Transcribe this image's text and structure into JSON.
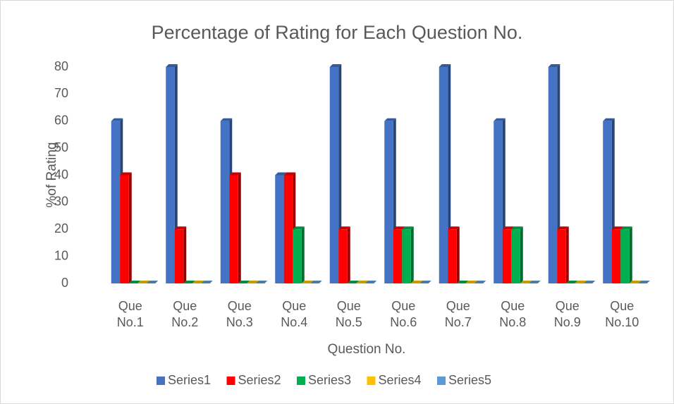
{
  "chart_data": {
    "type": "bar3d",
    "title": "Percentage of Rating for Each Question No.",
    "x_label": "Question No.",
    "y_label": "%of Rating",
    "categories": [
      "Que No.1",
      "Que No.2",
      "Que No.3",
      "Que No.4",
      "Que No.5",
      "Que No.6",
      "Que No.7",
      "Que No.8",
      "Que No.9",
      "Que No.10"
    ],
    "series": [
      {
        "name": "Series1",
        "color": "#4472c4",
        "values": [
          60,
          80,
          60,
          40,
          80,
          60,
          80,
          60,
          80,
          60
        ]
      },
      {
        "name": "Series2",
        "color": "#ff0000",
        "values": [
          40,
          20,
          40,
          40,
          20,
          20,
          20,
          20,
          20,
          20
        ]
      },
      {
        "name": "Series3",
        "color": "#00b050",
        "values": [
          0,
          0,
          0,
          20,
          0,
          20,
          0,
          20,
          0,
          20
        ]
      },
      {
        "name": "Series4",
        "color": "#ffc000",
        "values": [
          0,
          0,
          0,
          0,
          0,
          0,
          0,
          0,
          0,
          0
        ]
      },
      {
        "name": "Series5",
        "color": "#5b9bd5",
        "values": [
          0,
          0,
          0,
          0,
          0,
          0,
          0,
          0,
          0,
          0
        ]
      }
    ],
    "ylim": [
      0,
      80
    ],
    "yticks": [
      0,
      10,
      20,
      30,
      40,
      50,
      60,
      70,
      80
    ],
    "grid": false,
    "legend": "bottom"
  }
}
